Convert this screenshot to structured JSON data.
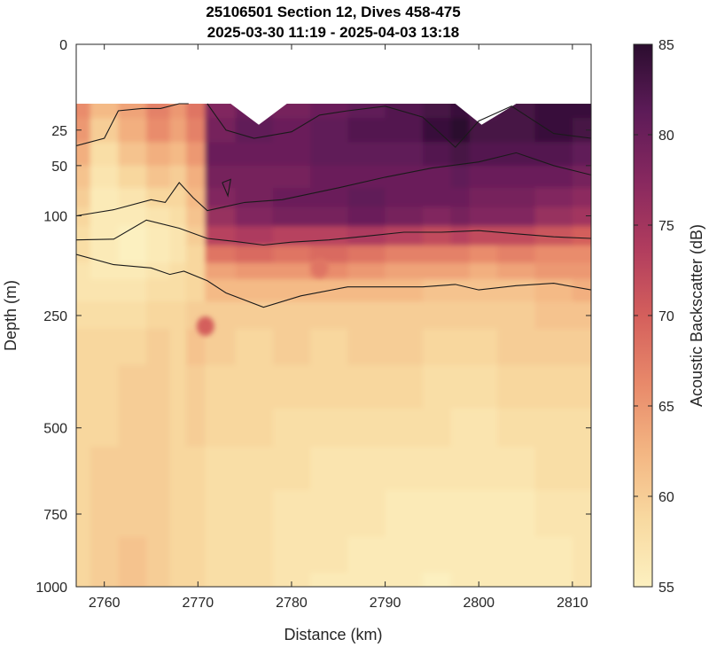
{
  "chart_data": {
    "type": "heatmap",
    "title": "25106501 Section 12, Dives 458-475",
    "subtitle": "2025-03-30 11:19 - 2025-04-03 13:18",
    "xlabel": "Distance (km)",
    "ylabel": "Depth (m)",
    "colorbar_label": "Acoustic Backscatter (dB)",
    "xlim": [
      2757,
      2812
    ],
    "ylim": [
      0,
      1000
    ],
    "y_scale": "sqrt",
    "x_ticks": [
      2760,
      2770,
      2780,
      2790,
      2800,
      2810
    ],
    "y_ticks": [
      0,
      25,
      50,
      100,
      250,
      500,
      750,
      1000
    ],
    "clim": [
      55,
      85
    ],
    "colorbar_ticks": [
      55,
      60,
      65,
      70,
      75,
      80,
      85
    ],
    "colormap": [
      "#fcf0c0",
      "#f8d9a0",
      "#f3b582",
      "#e8896a",
      "#d45f5c",
      "#b03c5e",
      "#87285f",
      "#5d1b58",
      "#2b0d2f"
    ],
    "surface_depth_profile": {
      "x": [
        2757,
        2773.5,
        2776.5,
        2779.5,
        2797.5,
        2800.3,
        2804,
        2812
      ],
      "depth": [
        12,
        12,
        22,
        12,
        12,
        22,
        12,
        12
      ]
    },
    "x": [
      2757,
      2760,
      2763,
      2766,
      2768,
      2769.5,
      2772,
      2776,
      2780,
      2784,
      2788,
      2792,
      2796,
      2798,
      2800,
      2804,
      2808,
      2812
    ],
    "depth": [
      12,
      25,
      40,
      60,
      80,
      100,
      125,
      150,
      175,
      200,
      250,
      300,
      400,
      500,
      600,
      750,
      900,
      1000
    ],
    "values": [
      [
        66,
        62,
        64,
        67,
        65,
        68,
        78,
        80,
        79,
        80,
        81,
        82,
        83,
        84,
        82,
        83,
        84,
        84
      ],
      [
        65,
        60,
        63,
        66,
        64,
        67,
        79,
        81,
        80,
        81,
        82,
        82,
        84,
        85,
        83,
        83,
        84,
        83
      ],
      [
        63,
        58,
        61,
        63,
        62,
        65,
        80,
        80,
        80,
        81,
        81,
        81,
        82,
        83,
        82,
        82,
        82,
        81
      ],
      [
        61,
        57,
        59,
        61,
        60,
        63,
        79,
        79,
        79,
        80,
        80,
        80,
        80,
        81,
        80,
        80,
        80,
        79
      ],
      [
        60,
        56,
        57,
        59,
        59,
        62,
        78,
        79,
        80,
        80,
        81,
        80,
        80,
        80,
        79,
        79,
        78,
        77
      ],
      [
        59,
        56,
        56,
        57,
        58,
        61,
        76,
        78,
        79,
        79,
        80,
        79,
        78,
        79,
        78,
        78,
        76,
        75
      ],
      [
        58,
        56,
        55,
        56,
        57,
        60,
        73,
        74,
        73,
        73,
        74,
        73,
        72,
        73,
        72,
        72,
        71,
        70
      ],
      [
        58,
        56,
        55,
        56,
        57,
        59,
        68,
        69,
        68,
        69,
        68,
        67,
        67,
        67,
        66,
        67,
        66,
        66
      ],
      [
        57,
        56,
        56,
        57,
        58,
        59,
        64,
        65,
        65,
        66,
        65,
        64,
        64,
        64,
        63,
        64,
        65,
        65
      ],
      [
        57,
        57,
        57,
        58,
        58,
        59,
        62,
        62,
        62,
        62,
        62,
        62,
        61,
        61,
        61,
        61,
        62,
        63
      ],
      [
        58,
        58,
        58,
        59,
        59,
        60,
        60,
        60,
        60,
        60,
        60,
        60,
        60,
        60,
        60,
        60,
        61,
        61
      ],
      [
        59,
        59,
        59,
        60,
        59,
        61,
        60,
        59,
        60,
        59,
        60,
        60,
        59,
        59,
        59,
        60,
        60,
        60
      ],
      [
        59,
        59,
        60,
        60,
        59,
        60,
        59,
        59,
        59,
        59,
        59,
        59,
        58,
        58,
        58,
        59,
        59,
        59
      ],
      [
        59,
        59,
        60,
        60,
        59,
        60,
        59,
        59,
        58,
        58,
        58,
        58,
        58,
        57,
        57,
        58,
        58,
        58
      ],
      [
        59,
        60,
        60,
        60,
        59,
        59,
        58,
        58,
        58,
        57,
        57,
        57,
        57,
        57,
        57,
        57,
        58,
        58
      ],
      [
        59,
        60,
        60,
        60,
        59,
        59,
        58,
        58,
        57,
        57,
        57,
        56,
        56,
        56,
        56,
        56,
        57,
        57
      ],
      [
        59,
        60,
        61,
        60,
        59,
        59,
        58,
        58,
        57,
        57,
        56,
        56,
        56,
        56,
        56,
        56,
        56,
        57
      ],
      [
        59,
        60,
        61,
        60,
        59,
        59,
        58,
        58,
        57,
        56,
        56,
        56,
        55,
        56,
        56,
        56,
        56,
        57
      ]
    ],
    "features": [
      {
        "x": 2770.8,
        "depth": 270,
        "value": 70
      },
      {
        "x": 2783,
        "depth": 170,
        "value": 68
      }
    ],
    "contours": [
      {
        "x": [
          2757,
          2760,
          2761.5,
          2764,
          2766,
          2768,
          2769
        ],
        "depth": [
          35,
          30,
          15,
          14,
          14,
          12,
          12
        ]
      },
      {
        "x": [
          2771,
          2773,
          2776,
          2780,
          2783,
          2786,
          2790,
          2794,
          2797.5,
          2800,
          2803.5,
          2808,
          2812
        ],
        "depth": [
          12,
          25,
          30,
          26,
          17,
          15,
          13,
          18,
          36,
          20,
          13,
          27,
          30
        ]
      },
      {
        "x": [
          2757,
          2761,
          2765,
          2766.5,
          2768,
          2769.5,
          2771,
          2775,
          2779,
          2785,
          2790,
          2795,
          2800,
          2804,
          2808,
          2812
        ],
        "depth": [
          100,
          93,
          82,
          85,
          65,
          80,
          94,
          85,
          82,
          70,
          60,
          52,
          47,
          40,
          50,
          58
        ]
      },
      {
        "x": [
          2772.6,
          2773.5,
          2773.2,
          2772.6
        ],
        "depth": [
          65,
          62,
          78,
          65
        ]
      },
      {
        "x": [
          2757,
          2761,
          2764.5,
          2768,
          2771,
          2774,
          2777,
          2780,
          2784,
          2788,
          2792,
          2796,
          2800,
          2804,
          2808,
          2812
        ],
        "depth": [
          130,
          129,
          105,
          115,
          128,
          132,
          137,
          133,
          130,
          125,
          120,
          120,
          118,
          122,
          126,
          128
        ]
      },
      {
        "x": [
          2757,
          2761,
          2765,
          2767,
          2768.5,
          2771,
          2773,
          2777,
          2781,
          2786,
          2790,
          2794,
          2797.5,
          2800,
          2804,
          2808,
          2812
        ],
        "depth": [
          150,
          165,
          170,
          180,
          175,
          190,
          210,
          235,
          215,
          200,
          200,
          200,
          196,
          205,
          198,
          194,
          205
        ]
      }
    ]
  }
}
